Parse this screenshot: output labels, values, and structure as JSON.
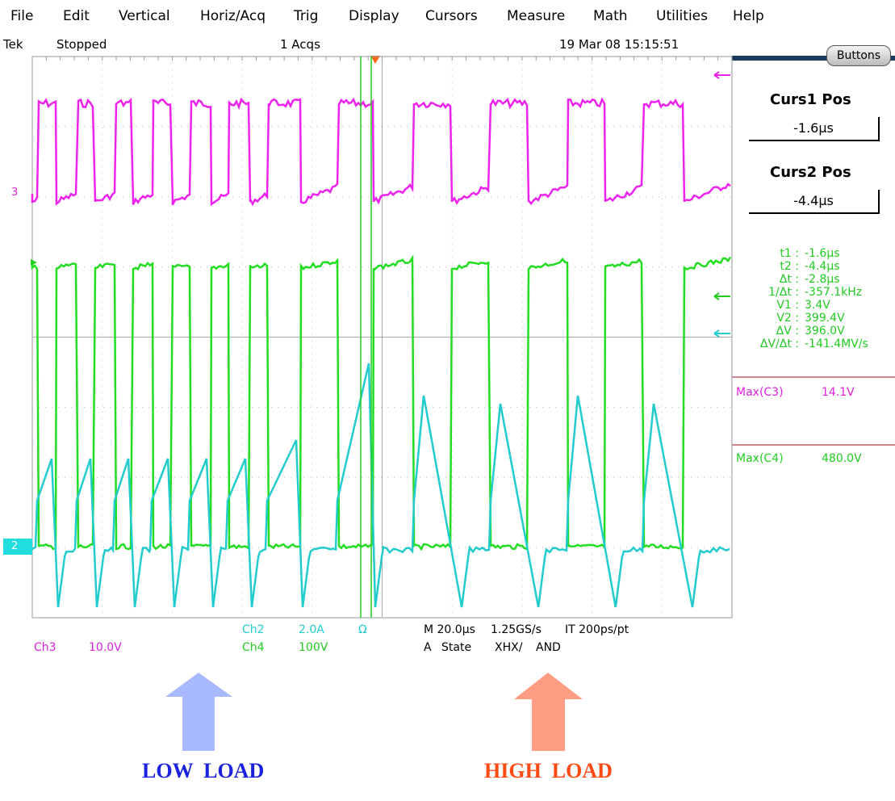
{
  "menu": [
    "File",
    "Edit",
    "Vertical",
    "Horiz/Acq",
    "Trig",
    "Display",
    "Cursors",
    "Measure",
    "Math",
    "Utilities",
    "Help"
  ],
  "status": {
    "brand": "Tek",
    "state": "Stopped",
    "acqs": "1 Acqs",
    "timestamp": "19 Mar 08 15:15:51"
  },
  "buttons_label": "Buttons",
  "cursors": [
    {
      "label": "Curs1 Pos",
      "value": "-1.6µs"
    },
    {
      "label": "Curs2 Pos",
      "value": "-4.4µs"
    }
  ],
  "readouts": [
    {
      "label": "t1 :",
      "value": "-1.6µs"
    },
    {
      "label": "t2 :",
      "value": "-4.4µs"
    },
    {
      "label": "Δt :",
      "value": "-2.8µs"
    },
    {
      "label": "1/Δt :",
      "value": "-357.1kHz"
    },
    {
      "label": "V1 :",
      "value": "3.4V"
    },
    {
      "label": "V2 :",
      "value": "399.4V"
    },
    {
      "label": "ΔV :",
      "value": "396.0V"
    },
    {
      "label": "ΔV/Δt :",
      "value": "-141.4MV/s"
    }
  ],
  "measurements": [
    {
      "label": "Max(C3)",
      "value": "14.1V"
    },
    {
      "label": "Max(C4)",
      "value": "480.0V"
    }
  ],
  "channels": {
    "ch2": {
      "name": "Ch2",
      "scale": "2.0A",
      "unit": "Ω"
    },
    "ch3": {
      "name": "Ch3",
      "scale": "10.0V"
    },
    "ch4": {
      "name": "Ch4",
      "scale": "100V"
    }
  },
  "timebase": {
    "scale": "M 20.0µs",
    "rate": "1.25GS/s",
    "interp": "IT 200ps/pt"
  },
  "trigger": {
    "source": "A",
    "mode": "State",
    "pattern": "XHX/",
    "logic": "AND"
  },
  "markers": {
    "ch3": "3",
    "ch2": "2"
  },
  "annotations": {
    "low": "LOW  LOAD",
    "high": "HIGH  LOAD"
  }
}
